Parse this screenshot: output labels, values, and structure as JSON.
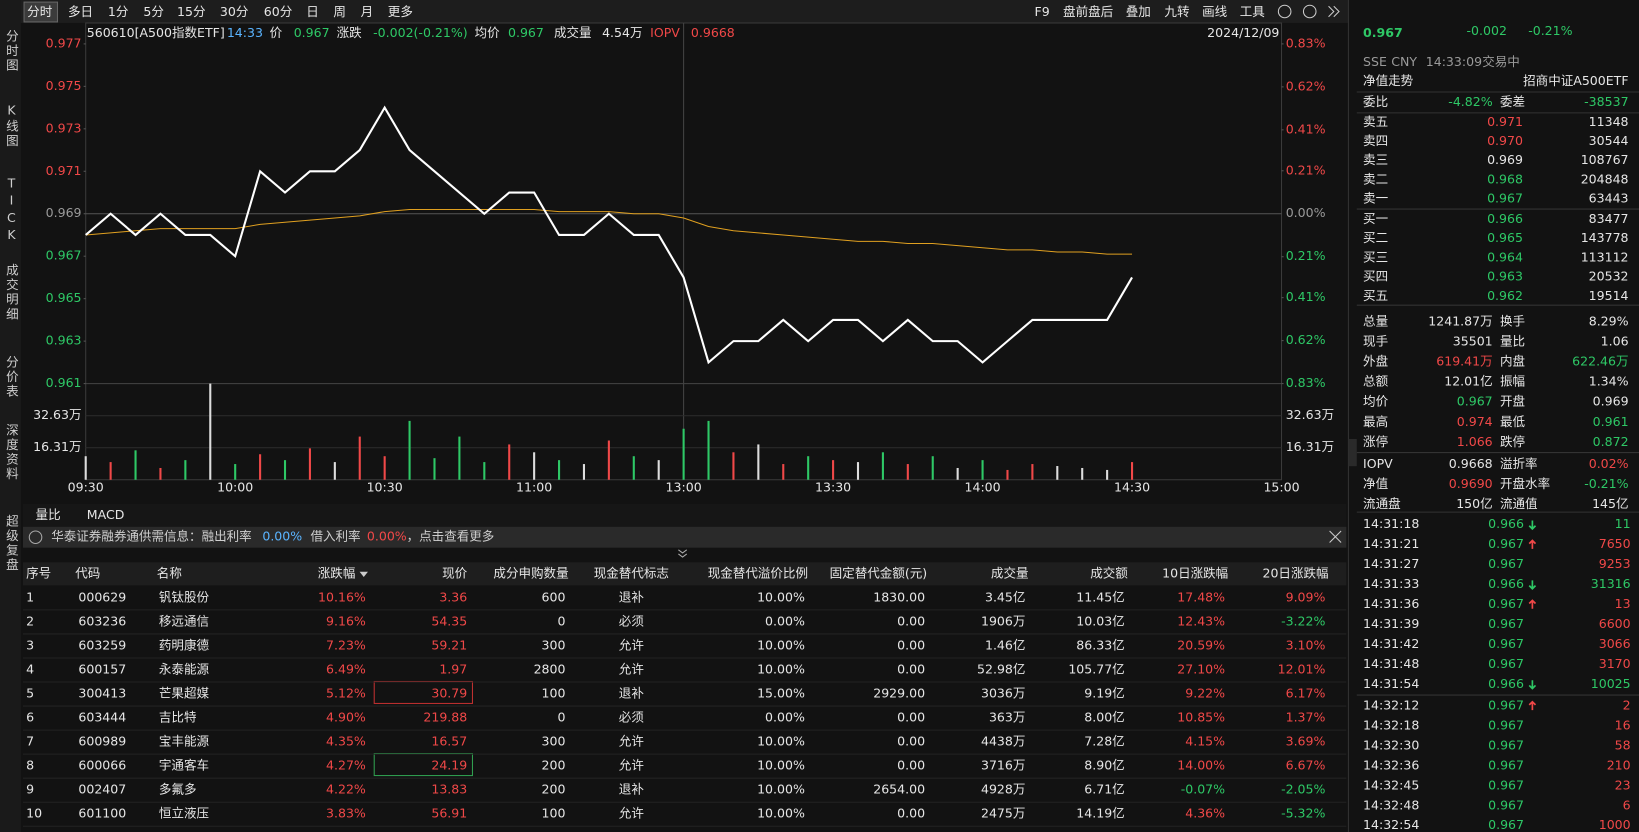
{
  "toolbar": {
    "periods": [
      "分时",
      "多日",
      "1分",
      "5分",
      "15分",
      "30分",
      "60分",
      "日",
      "周",
      "月",
      "更多"
    ],
    "tools": [
      "F9",
      "盘前盘后",
      "叠加",
      "九转",
      "画线",
      "工具"
    ]
  },
  "side_tabs": [
    "分时图",
    "K线图",
    "TICK",
    "成交明细",
    "分价表",
    "深度资料",
    "超级复盘"
  ],
  "info_bar": {
    "code": "560610[A500指数ETF]",
    "time": "14:33",
    "price_label": "价",
    "price": "0.967",
    "change_label": "涨跌",
    "change": "-0.002(-0.21%)",
    "avg_label": "均价",
    "avg": "0.967",
    "volume_label": "成交量",
    "volume": "4.54万",
    "iopv_label": "IOPV",
    "iopv": "0.9668",
    "date": "2024/12/09"
  },
  "chart_data": {
    "type": "line",
    "categories": [
      "09:30",
      null,
      null,
      null,
      null,
      null,
      "10:00",
      null,
      null,
      null,
      null,
      null,
      "10:30",
      null,
      null,
      null,
      null,
      null,
      "11:00",
      null,
      null,
      null,
      null,
      null,
      "13:00",
      null,
      null,
      null,
      null,
      null,
      "13:30",
      null,
      null,
      null,
      null,
      null,
      "14:00",
      null,
      null,
      null,
      null,
      null,
      "14:30",
      null,
      null,
      null,
      null,
      null,
      "15:00"
    ],
    "series": [
      {
        "color": "#ffffff",
        "values": [
          0.968,
          0.969,
          0.968,
          0.969,
          0.968,
          0.968,
          0.967,
          0.971,
          0.97,
          0.971,
          0.971,
          0.972,
          0.974,
          0.972,
          0.971,
          0.97,
          0.969,
          0.97,
          0.97,
          0.968,
          0.968,
          0.969,
          0.968,
          0.968,
          0.966,
          0.962,
          0.963,
          0.963,
          0.964,
          0.963,
          0.964,
          0.964,
          0.963,
          0.964,
          0.963,
          0.963,
          0.962,
          0.963,
          0.964,
          0.964,
          0.964,
          0.964,
          0.966,
          null,
          null,
          null,
          null,
          null,
          null
        ]
      },
      {
        "color": "#e0a020",
        "values": [
          0.968,
          0.9681,
          0.9682,
          0.9683,
          0.9683,
          0.9683,
          0.9683,
          0.9685,
          0.9686,
          0.9687,
          0.9688,
          0.9689,
          0.9691,
          0.9692,
          0.9692,
          0.9692,
          0.9692,
          0.9692,
          0.9692,
          0.9691,
          0.9691,
          0.9691,
          0.969,
          0.969,
          0.9688,
          0.9684,
          0.9682,
          0.9681,
          0.968,
          0.9679,
          0.9678,
          0.9677,
          0.9677,
          0.9676,
          0.9676,
          0.9675,
          0.9674,
          0.9673,
          0.9673,
          0.9672,
          0.9672,
          0.9671,
          0.9671,
          null,
          null,
          null,
          null,
          null,
          null
        ]
      }
    ],
    "ylim": [
      0.961,
      0.977
    ],
    "yticks": [
      0.977,
      0.975,
      0.973,
      0.971,
      0.969,
      0.967,
      0.965,
      0.963,
      0.961
    ],
    "y2lim": [
      -0.83,
      0.83
    ],
    "y2ticks": [
      {
        "value": 0.83,
        "label": "0.83%"
      },
      {
        "value": 0.62,
        "label": "0.62%"
      },
      {
        "value": 0.41,
        "label": "0.41%"
      },
      {
        "value": 0.21,
        "label": "0.21%"
      },
      {
        "value": 0,
        "label": "0.00%"
      },
      {
        "value": -0.21,
        "label": "0.21%"
      },
      {
        "value": -0.41,
        "label": "0.41%"
      },
      {
        "value": -0.62,
        "label": "0.62%"
      },
      {
        "value": -0.83,
        "label": "0.83%"
      }
    ],
    "volume": {
      "type": "bar",
      "values": [
        12,
        9,
        15,
        6,
        10,
        49,
        8,
        13,
        10,
        16,
        9,
        22,
        12,
        30,
        11,
        22,
        9,
        18,
        14,
        10,
        8,
        20,
        12,
        10,
        26,
        30,
        14,
        18,
        8,
        12,
        10,
        9,
        14,
        8,
        12,
        6,
        10,
        5,
        8,
        7,
        6,
        5,
        9
      ],
      "ylim": [
        0,
        49
      ],
      "yticks": [
        {
          "value": 32.63,
          "label": "32.63万"
        },
        {
          "value": 16.31,
          "label": "16.31万"
        }
      ]
    }
  },
  "chart_tabs": [
    "量比",
    "MACD"
  ],
  "notice": {
    "text": "华泰证券融券通供需信息：融出利率",
    "rate1": "0.00%",
    "text2": "借入利率",
    "rate2": "0.00%",
    "text3": "，点击查看更多"
  },
  "table": {
    "headers": [
      "序号",
      "代码",
      "名称",
      "涨跌幅",
      "现价",
      "成分申购数量",
      "现金替代标志",
      "现金替代溢价比例",
      "固定替代金额(元)",
      "成交量",
      "成交额",
      "10日涨跌幅",
      "20日涨跌幅"
    ],
    "rows": [
      [
        "1",
        "000629",
        "钒钛股份",
        "10.16%",
        "3.36",
        "600",
        "退补",
        "10.00%",
        "1830.00",
        "3.45亿",
        "11.45亿",
        "17.48%",
        "9.09%"
      ],
      [
        "2",
        "603236",
        "移远通信",
        "9.16%",
        "54.35",
        "0",
        "必须",
        "0.00%",
        "0.00",
        "1906万",
        "10.03亿",
        "12.43%",
        "-3.22%"
      ],
      [
        "3",
        "603259",
        "药明康德",
        "7.23%",
        "59.21",
        "300",
        "允许",
        "10.00%",
        "0.00",
        "1.46亿",
        "86.33亿",
        "20.59%",
        "3.10%"
      ],
      [
        "4",
        "600157",
        "永泰能源",
        "6.49%",
        "1.97",
        "2800",
        "允许",
        "10.00%",
        "0.00",
        "52.98亿",
        "105.77亿",
        "27.10%",
        "12.01%"
      ],
      [
        "5",
        "300413",
        "芒果超媒",
        "5.12%",
        "30.79",
        "100",
        "退补",
        "15.00%",
        "2929.00",
        "3036万",
        "9.19亿",
        "9.22%",
        "6.17%"
      ],
      [
        "6",
        "603444",
        "吉比特",
        "4.90%",
        "219.88",
        "0",
        "必须",
        "0.00%",
        "0.00",
        "363万",
        "8.00亿",
        "10.85%",
        "1.37%"
      ],
      [
        "7",
        "600989",
        "宝丰能源",
        "4.35%",
        "16.57",
        "300",
        "允许",
        "10.00%",
        "0.00",
        "4438万",
        "7.28亿",
        "4.15%",
        "3.69%"
      ],
      [
        "8",
        "600066",
        "宇通客车",
        "4.27%",
        "24.19",
        "200",
        "允许",
        "10.00%",
        "0.00",
        "3716万",
        "8.90亿",
        "14.00%",
        "6.67%"
      ],
      [
        "9",
        "002407",
        "多氟多",
        "4.22%",
        "13.83",
        "200",
        "退补",
        "10.00%",
        "2654.00",
        "4928万",
        "6.71亿",
        "-0.07%",
        "-2.05%"
      ],
      [
        "10",
        "601100",
        "恒立液压",
        "3.83%",
        "56.91",
        "100",
        "允许",
        "10.00%",
        "0.00",
        "2475万",
        "14.19亿",
        "4.36%",
        "-5.32%"
      ]
    ]
  },
  "quote": {
    "price": "0.967",
    "change": "-0.002",
    "change_pct": "-0.21%",
    "color": "#2ec866",
    "exchange": "SSE",
    "currency": "CNY",
    "time": "14:33:09",
    "status": "交易中",
    "nav_trend": "净值走势",
    "fund_name": "招商中证A500ETF"
  },
  "ratio": {
    "label1": "委比",
    "value1": "-4.82%",
    "label2": "委差",
    "value2": "-38537",
    "color": "#2ec866"
  },
  "asks": [
    {
      "label": "卖五",
      "price": "0.971",
      "volume": "11348",
      "color": "#f04848"
    },
    {
      "label": "卖四",
      "price": "0.970",
      "volume": "30544",
      "color": "#f04848"
    },
    {
      "label": "卖三",
      "price": "0.969",
      "volume": "108767",
      "color": "#e6e6e6"
    },
    {
      "label": "卖二",
      "price": "0.968",
      "volume": "204848",
      "color": "#2ec866"
    },
    {
      "label": "卖一",
      "price": "0.967",
      "volume": "63443",
      "color": "#2ec866"
    }
  ],
  "bids": [
    {
      "label": "买一",
      "price": "0.966",
      "volume": "83477",
      "color": "#2ec866"
    },
    {
      "label": "买二",
      "price": "0.965",
      "volume": "143778",
      "color": "#2ec866"
    },
    {
      "label": "买三",
      "price": "0.964",
      "volume": "113112",
      "color": "#2ec866"
    },
    {
      "label": "买四",
      "price": "0.963",
      "volume": "20532",
      "color": "#2ec866"
    },
    {
      "label": "买五",
      "price": "0.962",
      "volume": "19514",
      "color": "#2ec866"
    }
  ],
  "stats": [
    [
      {
        "label": "总量",
        "value": "1241.87万"
      },
      {
        "label": "换手",
        "value": "8.29%"
      }
    ],
    [
      {
        "label": "现手",
        "value": "35501"
      },
      {
        "label": "量比",
        "value": "1.06"
      }
    ],
    [
      {
        "label": "外盘",
        "value": "619.41万",
        "color": "#f04848"
      },
      {
        "label": "内盘",
        "value": "622.46万",
        "color": "#2ec866"
      }
    ],
    [
      {
        "label": "总额",
        "value": "12.01亿"
      },
      {
        "label": "振幅",
        "value": "1.34%"
      }
    ],
    [
      {
        "label": "均价",
        "value": "0.967",
        "color": "#2ec866"
      },
      {
        "label": "开盘",
        "value": "0.969"
      }
    ],
    [
      {
        "label": "最高",
        "value": "0.974",
        "color": "#f04848"
      },
      {
        "label": "最低",
        "value": "0.961",
        "color": "#2ec866"
      }
    ],
    [
      {
        "label": "涨停",
        "value": "1.066",
        "color": "#f04848"
      },
      {
        "label": "跌停",
        "value": "0.872",
        "color": "#2ec866"
      }
    ],
    [
      {
        "label": "IOPV",
        "value": "0.9668"
      },
      {
        "label": "溢折率",
        "value": "0.02%",
        "color": "#f04848"
      }
    ],
    [
      {
        "label": "净值",
        "value": "0.9690",
        "color": "#f04848"
      },
      {
        "label": "开盘水率",
        "value": "-0.21%",
        "color": "#2ec866"
      }
    ],
    [
      {
        "label": "流通盘",
        "value": "150亿"
      },
      {
        "label": "流通值",
        "value": "145亿"
      }
    ]
  ],
  "tick_price_color": "#2ec866",
  "ticks": [
    {
      "time": "14:31:18",
      "price": "0.966",
      "volume": "11",
      "arrow": "down",
      "color": "#2ec866"
    },
    {
      "time": "14:31:21",
      "price": "0.967",
      "volume": "7650",
      "arrow": "up",
      "color": "#f04848"
    },
    {
      "time": "14:31:27",
      "price": "0.967",
      "volume": "9253",
      "color": "#f04848"
    },
    {
      "time": "14:31:33",
      "price": "0.966",
      "volume": "31316",
      "arrow": "down",
      "color": "#2ec866"
    },
    {
      "time": "14:31:36",
      "price": "0.967",
      "volume": "13",
      "arrow": "up",
      "color": "#f04848"
    },
    {
      "time": "14:31:39",
      "price": "0.967",
      "volume": "6600",
      "color": "#f04848"
    },
    {
      "time": "14:31:42",
      "price": "0.967",
      "volume": "3066",
      "color": "#f04848"
    },
    {
      "time": "14:31:48",
      "price": "0.967",
      "volume": "3170",
      "color": "#f04848"
    },
    {
      "time": "14:31:54",
      "price": "0.966",
      "volume": "10025",
      "arrow": "down",
      "color": "#2ec866"
    },
    {
      "time": "14:32:12",
      "price": "0.967",
      "volume": "2",
      "arrow": "up",
      "color": "#f04848"
    },
    {
      "time": "14:32:18",
      "price": "0.967",
      "volume": "16",
      "color": "#f04848"
    },
    {
      "time": "14:32:30",
      "price": "0.967",
      "volume": "58",
      "color": "#f04848"
    },
    {
      "time": "14:32:36",
      "price": "0.967",
      "volume": "210",
      "color": "#f04848"
    },
    {
      "time": "14:32:45",
      "price": "0.967",
      "volume": "23",
      "color": "#f04848"
    },
    {
      "time": "14:32:48",
      "price": "0.967",
      "volume": "6",
      "color": "#f04848"
    },
    {
      "time": "14:32:54",
      "price": "0.967",
      "volume": "1000",
      "color": "#f04848"
    }
  ]
}
